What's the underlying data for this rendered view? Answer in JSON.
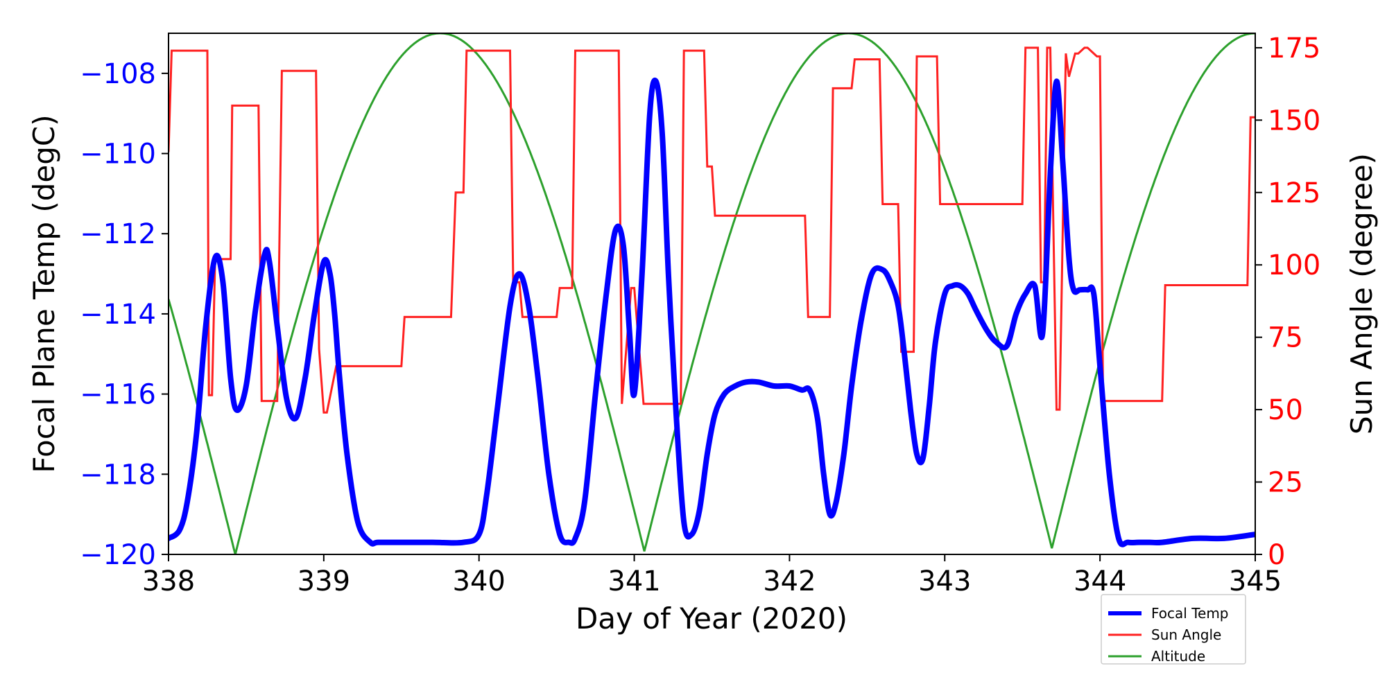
{
  "chart_data": {
    "type": "line",
    "xlabel": "Day of Year (2020)",
    "ylabel_left": "Focal Plane Temp (degC)",
    "ylabel_right": "Sun Angle (degree)",
    "xlim": [
      338,
      345
    ],
    "ylim_left": [
      -120,
      -107
    ],
    "ylim_right": [
      0,
      180
    ],
    "x_ticks": [
      338,
      339,
      340,
      341,
      342,
      343,
      344,
      345
    ],
    "y_left_ticks": [
      -120,
      -118,
      -116,
      -114,
      -112,
      -110,
      -108
    ],
    "y_left_tick_labels": [
      "−120",
      "−118",
      "−116",
      "−114",
      "−112",
      "−110",
      "−108"
    ],
    "y_right_ticks": [
      0,
      25,
      50,
      75,
      100,
      125,
      150,
      175
    ],
    "grid": false,
    "legend": {
      "placement": "bottom-right, below axes",
      "entries": [
        "Focal Temp",
        "Sun Angle",
        "Altitude"
      ]
    },
    "colors": {
      "focal_temp": "#0000ff",
      "sun_angle": "#ff2020",
      "altitude": "#2ca02c",
      "left_axis": "#0000ff",
      "right_axis": "#ff0000"
    },
    "series": [
      {
        "name": "Focal Temp",
        "axis": "left",
        "x": [
          338.0,
          338.07,
          338.12,
          338.18,
          338.24,
          338.3,
          338.35,
          338.4,
          338.44,
          338.5,
          338.56,
          338.62,
          338.65,
          338.7,
          338.76,
          338.82,
          338.88,
          338.94,
          339.0,
          339.04,
          339.07,
          339.1,
          339.15,
          339.22,
          339.3,
          339.35,
          339.5,
          339.7,
          339.9,
          340.0,
          340.05,
          340.12,
          340.2,
          340.26,
          340.32,
          340.38,
          340.45,
          340.52,
          340.58,
          340.62,
          340.68,
          340.75,
          340.82,
          340.88,
          340.93,
          340.97,
          341.0,
          341.05,
          341.1,
          341.14,
          341.18,
          341.22,
          341.27,
          341.32,
          341.37,
          341.42,
          341.47,
          341.52,
          341.58,
          341.65,
          341.72,
          341.8,
          341.9,
          342.0,
          342.08,
          342.13,
          342.18,
          342.22,
          342.26,
          342.3,
          342.35,
          342.4,
          342.46,
          342.53,
          342.6,
          342.65,
          342.7,
          342.74,
          342.78,
          342.82,
          342.86,
          342.9,
          342.94,
          343.0,
          343.05,
          343.1,
          343.15,
          343.2,
          343.27,
          343.33,
          343.4,
          343.46,
          343.52,
          343.58,
          343.63,
          343.68,
          343.72,
          343.76,
          343.8,
          343.83,
          343.87,
          343.92,
          343.96,
          344.0,
          344.06,
          344.12,
          344.18,
          344.25,
          344.32,
          344.4,
          344.6,
          344.8,
          345.0
        ],
        "y": [
          -119.6,
          -119.4,
          -118.7,
          -117.0,
          -114.3,
          -112.6,
          -113.2,
          -115.6,
          -116.4,
          -115.8,
          -113.9,
          -112.5,
          -112.7,
          -114.3,
          -116.1,
          -116.6,
          -115.6,
          -114.0,
          -112.7,
          -113.0,
          -114.0,
          -115.5,
          -117.5,
          -119.2,
          -119.7,
          -119.7,
          -119.7,
          -119.7,
          -119.7,
          -119.5,
          -118.5,
          -116.3,
          -113.8,
          -113.0,
          -113.8,
          -115.6,
          -118.0,
          -119.5,
          -119.7,
          -119.6,
          -118.7,
          -116.0,
          -113.5,
          -111.9,
          -112.3,
          -114.5,
          -116.0,
          -113.0,
          -109.0,
          -108.2,
          -109.5,
          -113.0,
          -116.5,
          -119.2,
          -119.5,
          -118.9,
          -117.5,
          -116.5,
          -116.0,
          -115.8,
          -115.7,
          -115.7,
          -115.8,
          -115.8,
          -115.9,
          -115.9,
          -116.6,
          -118.0,
          -119.0,
          -118.7,
          -117.5,
          -115.8,
          -114.2,
          -113.0,
          -112.9,
          -113.2,
          -113.8,
          -115.0,
          -116.4,
          -117.5,
          -117.6,
          -116.3,
          -114.7,
          -113.5,
          -113.3,
          -113.3,
          -113.5,
          -113.9,
          -114.4,
          -114.7,
          -114.8,
          -114.0,
          -113.5,
          -113.3,
          -114.5,
          -110.5,
          -108.2,
          -110.2,
          -112.6,
          -113.4,
          -113.4,
          -113.4,
          -113.5,
          -115.3,
          -118.0,
          -119.6,
          -119.7,
          -119.7,
          -119.7,
          -119.7,
          -119.6,
          -119.6,
          -119.5
        ]
      },
      {
        "name": "Sun Angle",
        "axis": "right",
        "x": [
          338.0,
          338.02,
          338.04,
          338.25,
          338.26,
          338.28,
          338.3,
          338.32,
          338.4,
          338.41,
          338.58,
          338.6,
          338.68,
          338.7,
          338.73,
          338.75,
          338.95,
          338.97,
          339.0,
          339.02,
          339.08,
          339.1,
          339.5,
          339.52,
          339.82,
          339.85,
          339.9,
          339.92,
          340.2,
          340.22,
          340.26,
          340.28,
          340.5,
          340.52,
          340.6,
          340.62,
          340.9,
          340.92,
          340.98,
          341.0,
          341.06,
          341.08,
          341.3,
          341.32,
          341.45,
          341.47,
          341.5,
          341.52,
          341.8,
          342.0,
          342.1,
          342.12,
          342.26,
          342.28,
          342.4,
          342.42,
          342.58,
          342.6,
          342.7,
          342.72,
          342.8,
          342.82,
          342.95,
          342.97,
          343.2,
          343.22,
          343.5,
          343.52,
          343.58,
          343.6,
          343.62,
          343.64,
          343.66,
          343.68,
          343.72,
          343.74,
          343.78,
          343.8,
          343.84,
          343.86,
          343.9,
          343.92,
          343.98,
          344.0,
          344.02,
          344.04,
          344.4,
          344.42,
          344.9,
          344.95,
          344.97,
          345.0
        ],
        "y": [
          139,
          174,
          174,
          174,
          55,
          55,
          102,
          102,
          102,
          155,
          155,
          53,
          53,
          53,
          167,
          167,
          167,
          71,
          49,
          49,
          65,
          65,
          65,
          82,
          82,
          125,
          125,
          174,
          174,
          94,
          94,
          82,
          82,
          92,
          92,
          174,
          174,
          52,
          92,
          92,
          52,
          52,
          52,
          174,
          174,
          134,
          134,
          117,
          117,
          117,
          117,
          82,
          82,
          161,
          161,
          171,
          171,
          121,
          121,
          70,
          70,
          172,
          172,
          121,
          121,
          121,
          121,
          175,
          175,
          175,
          94,
          94,
          175,
          175,
          50,
          50,
          173,
          165,
          173,
          173,
          175,
          175,
          172,
          172,
          53,
          53,
          53,
          93,
          93,
          93,
          151,
          151
        ]
      },
      {
        "name": "Altitude",
        "axis": "right",
        "model": "abs(cos(pi*(x-peak)/period)) scaled 0-180",
        "peaks": [
          339.75,
          342.38,
          345.0
        ],
        "period": 2.64
      }
    ]
  }
}
